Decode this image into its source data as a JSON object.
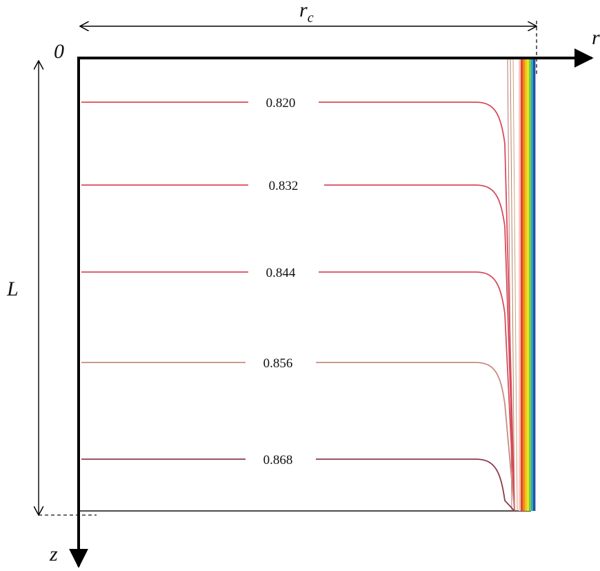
{
  "diagram": {
    "labels": {
      "origin": "0",
      "r_axis": "r",
      "z_axis": "z",
      "length": "L",
      "radius_main": "r",
      "radius_sub": "c"
    },
    "contours": [
      {
        "value": "0.820",
        "color": "#d84a5a"
      },
      {
        "value": "0.832",
        "color": "#d84a5a"
      },
      {
        "value": "0.844",
        "color": "#d84a5a"
      },
      {
        "value": "0.856",
        "color": "#c98a80"
      },
      {
        "value": "0.868",
        "color": "#8a3a4a"
      }
    ],
    "wall_band_colors": [
      "#f2c6c6",
      "#e34a2a",
      "#ee8a1e",
      "#f3c21a",
      "#e6e629",
      "#7ccc3a",
      "#2aa8c8",
      "#2252a8"
    ]
  }
}
